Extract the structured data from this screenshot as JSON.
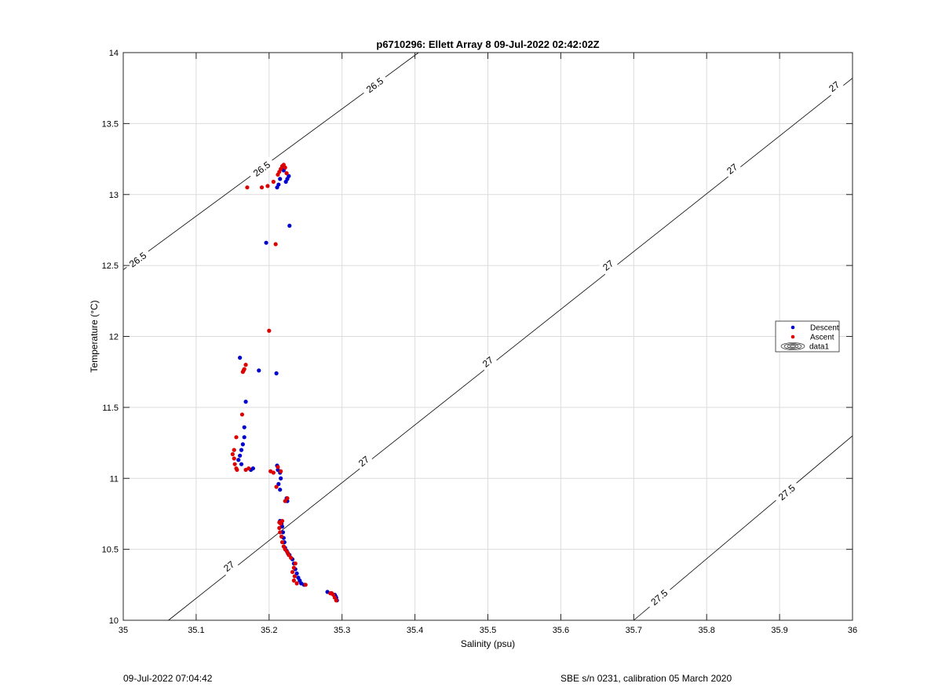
{
  "chart_data": {
    "type": "scatter",
    "title": "p6710296: Ellett Array 8 09-Jul-2022 02:42:02Z",
    "xlabel": "Salinity (psu)",
    "ylabel": "Temperature (°C)",
    "xlim": [
      35,
      36
    ],
    "ylim": [
      10,
      14
    ],
    "x_ticks": [
      35,
      35.1,
      35.2,
      35.3,
      35.4,
      35.5,
      35.6,
      35.7,
      35.8,
      35.9,
      36
    ],
    "x_tick_labels": [
      "35",
      "35.1",
      "35.2",
      "35.3",
      "35.4",
      "35.5",
      "35.6",
      "35.7",
      "35.8",
      "35.9",
      "36"
    ],
    "y_ticks": [
      10,
      10.5,
      11,
      11.5,
      12,
      12.5,
      13,
      13.5,
      14
    ],
    "y_tick_labels": [
      "10",
      "10.5",
      "11",
      "11.5",
      "12",
      "12.5",
      "13",
      "13.5",
      "14"
    ],
    "grid": true,
    "legend_position": "right",
    "series": [
      {
        "name": "Descent",
        "color": "#0000cc",
        "x": [
          35.293,
          35.292,
          35.291,
          35.29,
          35.285,
          35.28,
          35.248,
          35.244,
          35.242,
          35.24,
          35.238,
          35.236,
          35.234,
          35.232,
          35.228,
          35.226,
          35.224,
          35.222,
          35.221,
          35.22,
          35.219,
          35.218,
          35.217,
          35.216,
          35.215,
          35.225,
          35.224,
          35.215,
          35.213,
          35.216,
          35.215,
          35.212,
          35.211,
          35.178,
          35.175,
          35.162,
          35.158,
          35.16,
          35.162,
          35.164,
          35.166,
          35.166,
          35.168,
          35.16,
          35.186,
          35.21,
          35.196,
          35.228,
          35.223,
          35.225,
          35.227,
          35.22,
          35.218,
          35.215,
          35.213,
          35.211
        ],
        "y": [
          10.14,
          10.16,
          10.17,
          10.18,
          10.19,
          10.2,
          10.25,
          10.26,
          10.28,
          10.3,
          10.33,
          10.36,
          10.4,
          10.43,
          10.46,
          10.47,
          10.49,
          10.51,
          10.55,
          10.58,
          10.62,
          10.66,
          10.68,
          10.69,
          10.7,
          10.84,
          10.86,
          10.92,
          10.96,
          11.0,
          11.04,
          11.06,
          11.09,
          11.07,
          11.06,
          11.1,
          11.13,
          11.16,
          11.2,
          11.24,
          11.29,
          11.36,
          11.54,
          11.85,
          11.76,
          11.74,
          12.66,
          12.78,
          13.09,
          13.11,
          13.13,
          13.17,
          13.18,
          13.11,
          13.07,
          13.05
        ]
      },
      {
        "name": "Ascent",
        "color": "#dd0000",
        "x": [
          35.292,
          35.29,
          35.288,
          35.286,
          35.284,
          35.25,
          35.238,
          35.234,
          35.235,
          35.232,
          35.234,
          35.236,
          35.23,
          35.227,
          35.225,
          35.222,
          35.22,
          35.218,
          35.217,
          35.215,
          35.214,
          35.216,
          35.218,
          35.214,
          35.225,
          35.222,
          35.21,
          35.206,
          35.202,
          35.216,
          35.212,
          35.172,
          35.168,
          35.156,
          35.155,
          35.153,
          35.152,
          35.15,
          35.152,
          35.155,
          35.163,
          35.165,
          35.166,
          35.168,
          35.164,
          35.2,
          35.209,
          35.17,
          35.19,
          35.198,
          35.206,
          35.212,
          35.214,
          35.216,
          35.218,
          35.22,
          35.222,
          35.224
        ],
        "y": [
          10.14,
          10.16,
          10.18,
          10.19,
          10.19,
          10.25,
          10.26,
          10.28,
          10.31,
          10.34,
          10.37,
          10.4,
          10.44,
          10.46,
          10.48,
          10.5,
          10.52,
          10.55,
          10.59,
          10.62,
          10.65,
          10.68,
          10.7,
          10.69,
          10.86,
          10.84,
          10.94,
          11.04,
          11.05,
          11.05,
          11.08,
          11.07,
          11.06,
          11.06,
          11.07,
          11.1,
          11.14,
          11.17,
          11.2,
          11.29,
          11.45,
          11.76,
          11.77,
          11.8,
          11.75,
          12.04,
          12.65,
          13.05,
          13.05,
          13.06,
          13.09,
          13.14,
          13.16,
          13.18,
          13.2,
          13.21,
          13.19,
          13.15
        ]
      }
    ],
    "contours": [
      {
        "level": 26.5,
        "color": "#000000",
        "line": [
          [
            35,
            12.47
          ],
          [
            35.405,
            14
          ]
        ],
        "label_positions": [
          [
            35.02,
            12.54
          ],
          [
            35.19,
            13.18
          ],
          [
            35.345,
            13.77
          ]
        ]
      },
      {
        "level": 27,
        "color": "#000000",
        "line": [
          [
            35.062,
            10
          ],
          [
            36,
            13.82
          ]
        ],
        "label_positions": [
          [
            35.145,
            10.38
          ],
          [
            35.33,
            11.12
          ],
          [
            35.5,
            11.82
          ],
          [
            35.665,
            12.5
          ],
          [
            35.835,
            13.18
          ],
          [
            35.975,
            13.76
          ]
        ]
      },
      {
        "level": 27.5,
        "color": "#000000",
        "line": [
          [
            35.7,
            10
          ],
          [
            36,
            11.3
          ]
        ],
        "label_positions": [
          [
            35.735,
            10.16
          ],
          [
            35.91,
            10.9
          ]
        ]
      }
    ],
    "contour_label_text": [
      "26.5",
      "27",
      "27.5"
    ],
    "legend": [
      "Descent",
      "Ascent",
      "data1"
    ]
  },
  "footer": {
    "left": "09-Jul-2022 07:04:42",
    "right": "SBE s/n 0231, calibration 05 March 2020"
  }
}
